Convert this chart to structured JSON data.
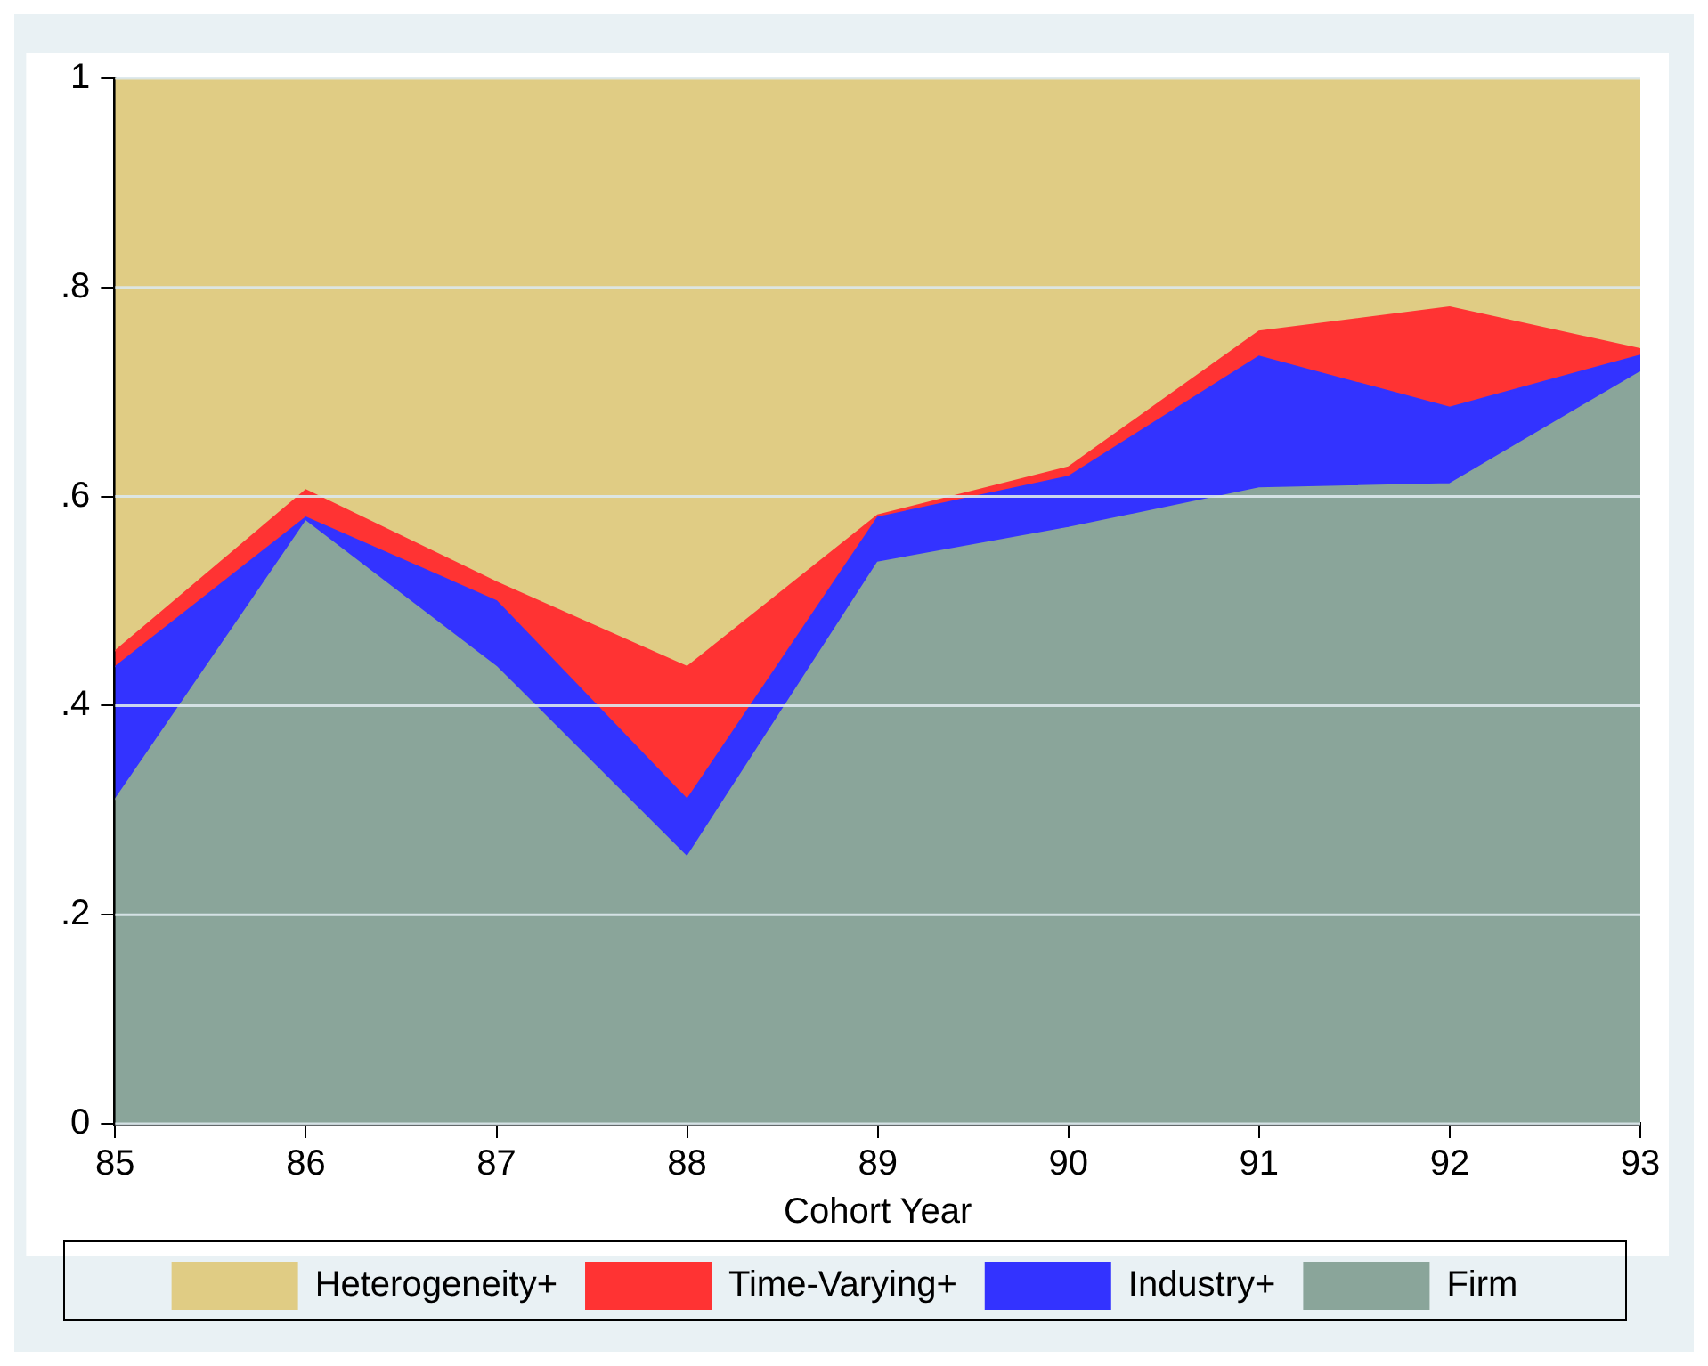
{
  "chart_data": {
    "type": "area",
    "stacked": true,
    "xlabel": "Cohort Year",
    "x": [
      85,
      86,
      87,
      88,
      89,
      90,
      91,
      92,
      93
    ],
    "xlim": [
      85,
      93
    ],
    "xticks": [
      85,
      86,
      87,
      88,
      89,
      90,
      91,
      92,
      93
    ],
    "ylim": [
      0,
      1
    ],
    "yticks": [
      {
        "value": 0,
        "label": "0"
      },
      {
        "value": 0.2,
        "label": ".2"
      },
      {
        "value": 0.4,
        "label": ".4"
      },
      {
        "value": 0.6,
        "label": ".6"
      },
      {
        "value": 0.8,
        "label": ".8"
      },
      {
        "value": 1,
        "label": "1"
      }
    ],
    "grid": "y",
    "legend": "bottom",
    "series": [
      {
        "name": "Firm",
        "color": "#8aa59a",
        "values": [
          0.31,
          0.576,
          0.437,
          0.255,
          0.537,
          0.57,
          0.608,
          0.612,
          0.719
        ]
      },
      {
        "name": "Industry+",
        "color": "#3333ff",
        "values": [
          0.127,
          0.004,
          0.063,
          0.055,
          0.043,
          0.049,
          0.126,
          0.073,
          0.016
        ]
      },
      {
        "name": "Time-Varying+",
        "color": "#ff3333",
        "values": [
          0.015,
          0.026,
          0.018,
          0.127,
          0.002,
          0.009,
          0.024,
          0.096,
          0.006
        ]
      },
      {
        "name": "Heterogeneity+",
        "color": "#e0cc84",
        "values": [
          0.548,
          0.394,
          0.482,
          0.563,
          0.418,
          0.372,
          0.242,
          0.219,
          0.259
        ]
      }
    ]
  }
}
